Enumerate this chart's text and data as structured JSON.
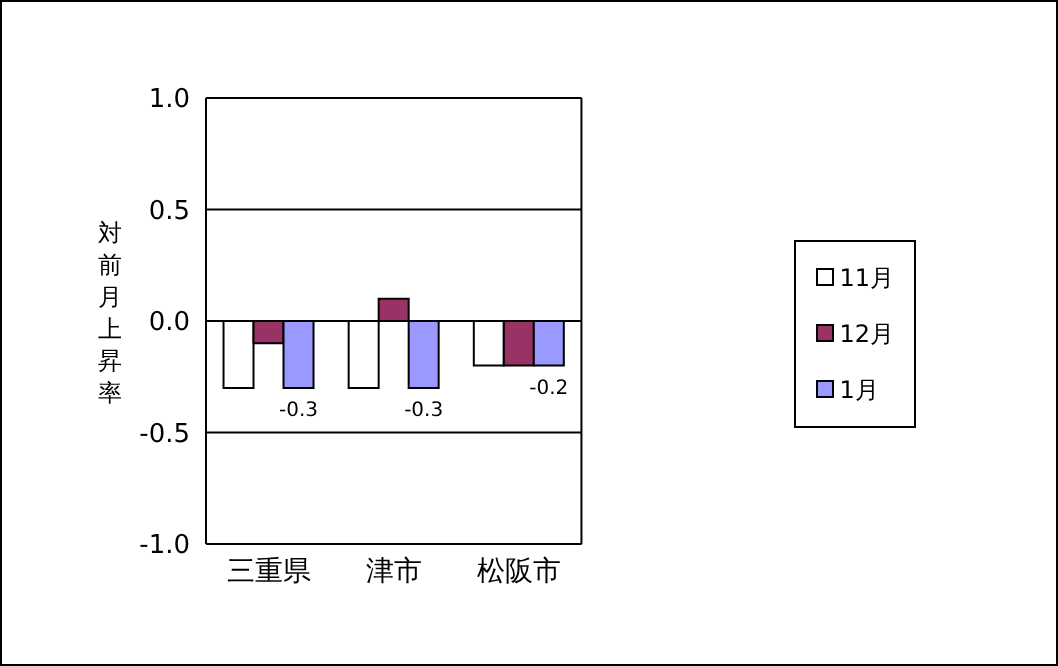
{
  "chart_data": {
    "type": "bar",
    "ylabel": "対前月上昇率",
    "categories": [
      "三重県",
      "津市",
      "松阪市"
    ],
    "series": [
      {
        "name": "11月",
        "color": "#ffffff",
        "values": [
          -0.3,
          -0.3,
          -0.2
        ]
      },
      {
        "name": "12月",
        "color": "#993366",
        "values": [
          -0.1,
          0.1,
          -0.2
        ]
      },
      {
        "name": "1月",
        "color": "#9999ff",
        "values": [
          -0.3,
          -0.3,
          -0.2
        ],
        "value_labels": [
          "-0.3",
          "-0.3",
          "-0.2"
        ]
      }
    ],
    "ylim": [
      -1,
      1
    ],
    "yticks": [
      {
        "value": -1,
        "label": "-1.0"
      },
      {
        "value": -0.5,
        "label": "-0.5"
      },
      {
        "value": 0,
        "label": "0.0"
      },
      {
        "value": 0.5,
        "label": "0.5"
      },
      {
        "value": 1,
        "label": "1.0"
      }
    ],
    "grid": "y",
    "legend": "right"
  }
}
